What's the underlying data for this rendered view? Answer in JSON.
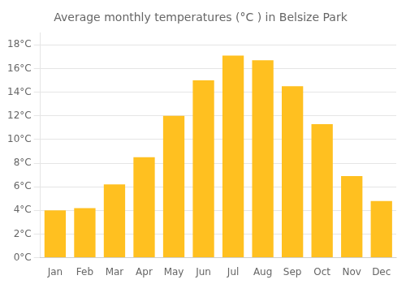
{
  "chart_data": {
    "type": "bar",
    "title": "Average monthly temperatures (°C ) in Belsize Park",
    "categories": [
      "Jan",
      "Feb",
      "Mar",
      "Apr",
      "May",
      "Jun",
      "Jul",
      "Aug",
      "Sep",
      "Oct",
      "Nov",
      "Dec"
    ],
    "values": [
      4.0,
      4.2,
      6.2,
      8.5,
      12.0,
      15.0,
      17.1,
      16.7,
      14.5,
      11.3,
      6.9,
      4.8
    ],
    "color": "#FFC020",
    "ylim": [
      0,
      19
    ],
    "yticks": [
      {
        "value": 0,
        "label": "0°C"
      },
      {
        "value": 2,
        "label": "2°C"
      },
      {
        "value": 4,
        "label": "4°C"
      },
      {
        "value": 6,
        "label": "6°C"
      },
      {
        "value": 8,
        "label": "8°C"
      },
      {
        "value": 10,
        "label": "10°C"
      },
      {
        "value": 12,
        "label": "12°C"
      },
      {
        "value": 14,
        "label": "14°C"
      },
      {
        "value": 16,
        "label": "16°C"
      },
      {
        "value": 18,
        "label": "18°C"
      }
    ],
    "grid": true
  }
}
